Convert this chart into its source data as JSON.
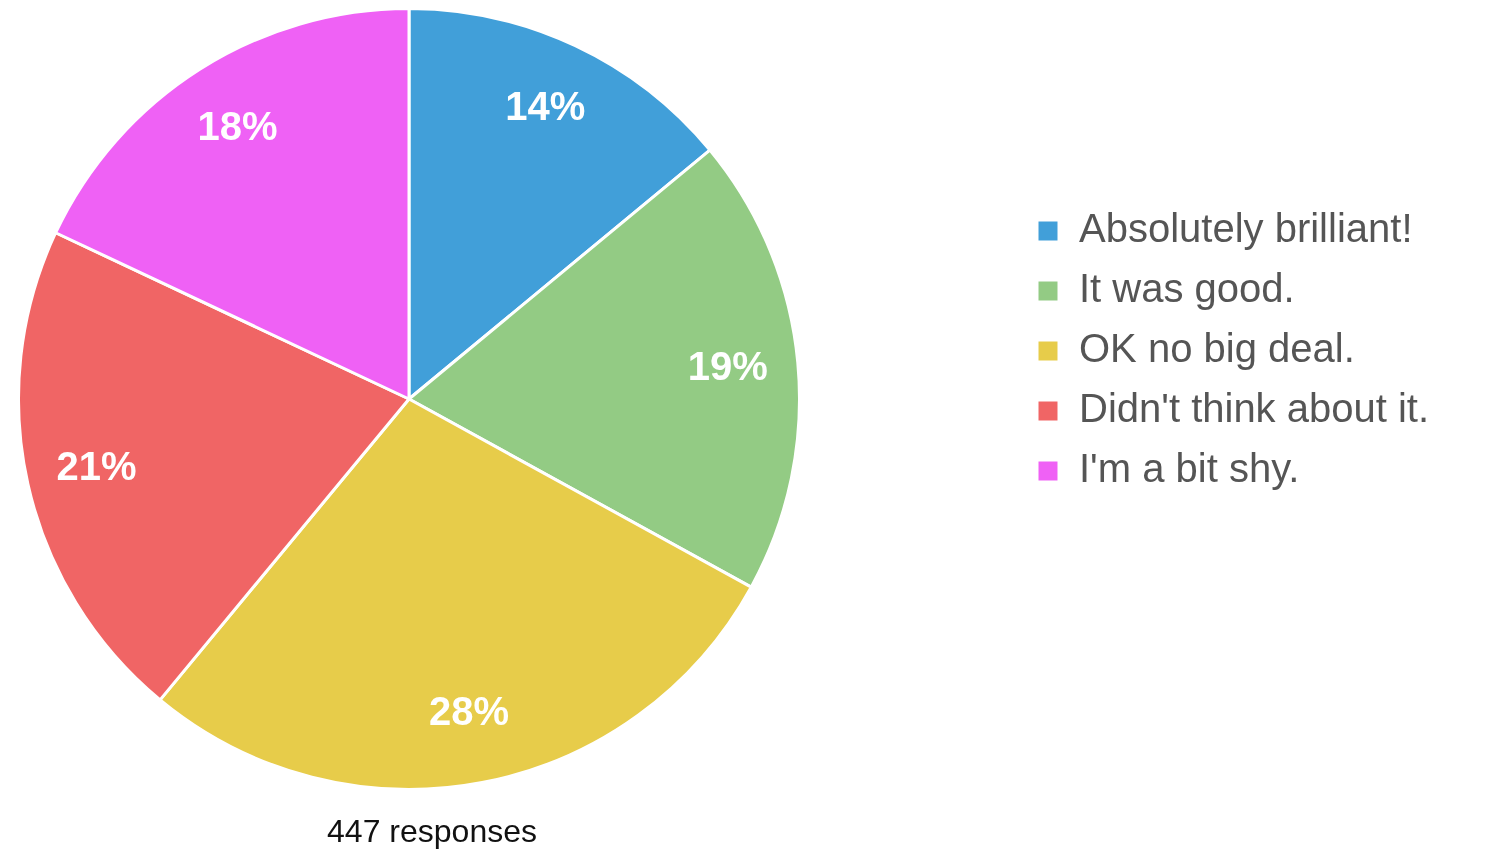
{
  "chart_data": {
    "type": "pie",
    "categories": [
      "Absolutely brilliant!",
      "It was good.",
      "OK no big deal.",
      "Didn't think about it.",
      "I'm a bit shy."
    ],
    "values": [
      14,
      19,
      28,
      21,
      18
    ],
    "colors": [
      "#419fd9",
      "#93cb84",
      "#e7cc4a",
      "#f06565",
      "#ef61f5"
    ],
    "value_labels": [
      "14%",
      "19%",
      "28%",
      "21%",
      "18%"
    ],
    "legend": "right",
    "annotations": [
      "447 responses"
    ]
  }
}
